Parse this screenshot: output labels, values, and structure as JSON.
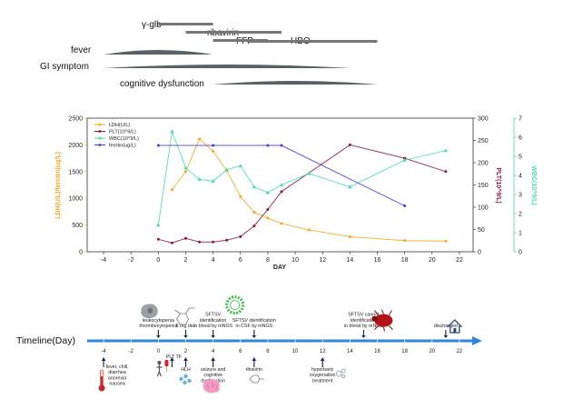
{
  "treatment_bars": [
    {
      "label": "γ-glb",
      "start": 0,
      "end": 4
    },
    {
      "label": "ribavirin",
      "start": 2,
      "end": 9
    },
    {
      "label": "FFP",
      "start": 4,
      "end": 8
    },
    {
      "label": "HBO",
      "start": 6.5,
      "end": 16
    }
  ],
  "symptom_curves": [
    {
      "label": "fever",
      "start": -4,
      "end": 4
    },
    {
      "label": "GI symptom",
      "start": -4,
      "end": 14
    },
    {
      "label": "cognitive dysfunction",
      "start": 4,
      "end": 16
    }
  ],
  "chart_data": {
    "type": "line",
    "xlabel": "DAY",
    "x_ticks": [
      -4,
      -2,
      0,
      2,
      4,
      6,
      8,
      10,
      12,
      14,
      16,
      18,
      20,
      22
    ],
    "xlim": [
      -5.2,
      23
    ],
    "axes": {
      "left": {
        "label": "LDH(U/L)/ferritin(ug/L)",
        "ylim": [
          0,
          2500
        ],
        "ticks": [
          0,
          500,
          1000,
          1500,
          2000,
          2500
        ],
        "color": "#f5a623"
      },
      "right1": {
        "label": "PLT(10^9/L)",
        "ylim": [
          0,
          300
        ],
        "ticks": [
          0,
          50,
          100,
          150,
          200,
          250,
          300
        ],
        "color": "#8b1a3a"
      },
      "right2": {
        "label": "WBC(10^9/L)",
        "ylim": [
          0,
          7
        ],
        "ticks": [
          0,
          1,
          2,
          3,
          4,
          5,
          6,
          7
        ],
        "color": "#4dd9b0"
      }
    },
    "series": [
      {
        "name": "LDH(U/L)",
        "axis": "left",
        "color": "#f5a623",
        "marker": "o",
        "x": [
          1,
          2,
          3,
          4,
          5,
          6,
          7,
          8,
          9,
          11,
          14,
          18,
          21
        ],
        "y": [
          1160,
          1500,
          2110,
          1880,
          1520,
          1030,
          740,
          630,
          530,
          410,
          280,
          210,
          200
        ]
      },
      {
        "name": "PLT(10^9/L)",
        "axis": "right1",
        "color": "#8b1a3a",
        "marker": "o",
        "x": [
          0,
          1,
          2,
          3,
          4,
          5,
          6,
          7,
          8,
          9,
          14,
          18,
          21
        ],
        "y": [
          28,
          20,
          30,
          22,
          22,
          26,
          34,
          58,
          95,
          135,
          240,
          210,
          180
        ]
      },
      {
        "name": "WBC(10^9/L)",
        "axis": "right2",
        "color": "#4dd9b0",
        "marker": "^",
        "x": [
          0,
          1,
          2,
          3,
          4,
          5,
          6,
          7,
          8,
          9,
          11,
          14,
          18,
          21
        ],
        "y": [
          1.4,
          6.3,
          4.4,
          3.8,
          3.7,
          4.3,
          4.5,
          3.4,
          3.1,
          3.5,
          4.1,
          3.4,
          4.8,
          5.3
        ]
      },
      {
        "name": "ferritin(ug/L)",
        "axis": "left",
        "color": "#4b3ad6",
        "marker": "o",
        "x": [
          0,
          4,
          8,
          9,
          18
        ],
        "y": [
          1990,
          1990,
          1990,
          1990,
          860
        ]
      }
    ],
    "legend_position": "top-left"
  },
  "timeline": {
    "title": "Timeline(Day)",
    "ticks": [
      -4,
      -2,
      0,
      2,
      4,
      6,
      8,
      10,
      12,
      14,
      16,
      18,
      20,
      22
    ],
    "axis_color": "#2e86de",
    "above": [
      {
        "day": 0,
        "label": "leukocytopenia\nthrombocytopenia",
        "icon": "virus-cell-icon"
      },
      {
        "day": 2,
        "label": "5 mg dex",
        "icon": "dex-molecule-icon"
      },
      {
        "day": 4,
        "label": "SFTSV\nidentification\nin blood by mNGS",
        "icon": "sftsv-virus-icon"
      },
      {
        "day": 7,
        "label": "SFTSV identification\nin CSF by mNGS",
        "icon": "none"
      },
      {
        "day": 15,
        "label": "SFTSV cannot\nidentification\nin blood by mNGS",
        "icon": "tick-insect-icon"
      },
      {
        "day": 21,
        "label": "discharged",
        "icon": "house-icon"
      }
    ],
    "below": [
      {
        "day": -4,
        "label": "fever, chill,\ndiarrhea\nanorexia\nnausea",
        "icon": "thermometer-icon"
      },
      {
        "day": 1,
        "label": "PLT TF",
        "icon": "transfusion-icon"
      },
      {
        "day": 2,
        "label": "HLH",
        "icon": "blood-cells-icon"
      },
      {
        "day": 4,
        "label": "seizure and\ncognitive\ndysfunction",
        "icon": "brain-icon"
      },
      {
        "day": 7,
        "label": "ribavirin",
        "icon": "ribavirin-molecule-icon"
      },
      {
        "day": 12,
        "label": "hyperbaric\noxygenation\ntreatment",
        "icon": "bubbles-icon"
      }
    ]
  }
}
